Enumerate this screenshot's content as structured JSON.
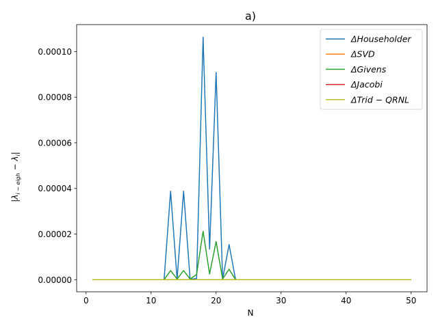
{
  "chart_data": {
    "type": "line",
    "title": "a)",
    "xlabel": "N",
    "ylabel": "|λ_{i-eigh} − λ_i|",
    "xlim": [
      -1.45,
      52.45
    ],
    "ylim": [
      -5.3e-06,
      0.0001118
    ],
    "x_ticks": [
      0,
      10,
      20,
      30,
      40,
      50
    ],
    "y_ticks": [
      0.0,
      2e-05,
      4e-05,
      6e-05,
      8e-05,
      0.0001
    ],
    "x_tick_labels": [
      "0",
      "10",
      "20",
      "30",
      "40",
      "50"
    ],
    "y_tick_labels": [
      "0.00000",
      "0.00002",
      "0.00004",
      "0.00006",
      "0.00008",
      "0.00010"
    ],
    "grid": false,
    "legend_position": "top-right",
    "x": [
      1,
      2,
      3,
      4,
      5,
      6,
      7,
      8,
      9,
      10,
      11,
      12,
      13,
      14,
      15,
      16,
      17,
      18,
      19,
      20,
      21,
      22,
      23,
      24,
      25,
      26,
      27,
      28,
      29,
      30,
      31,
      32,
      33,
      34,
      35,
      36,
      37,
      38,
      39,
      40,
      41,
      42,
      43,
      44,
      45,
      46,
      47,
      48,
      49,
      50
    ],
    "series": [
      {
        "name": "ΔHouseholder",
        "color": "#1f77b4",
        "values": [
          0,
          0,
          0,
          0,
          0,
          0,
          0,
          0,
          0,
          0,
          0,
          0,
          3.88e-05,
          2e-07,
          3.88e-05,
          2e-07,
          5e-07,
          0.0001063,
          1.34e-05,
          9.08e-05,
          3e-07,
          1.54e-05,
          0,
          0,
          0,
          0,
          0,
          0,
          0,
          0,
          0,
          0,
          0,
          0,
          0,
          0,
          0,
          0,
          0,
          0,
          0,
          0,
          0,
          0,
          0,
          0,
          0,
          0,
          0,
          0
        ]
      },
      {
        "name": "ΔSVD",
        "color": "#ff7f0e",
        "values": [
          0,
          0,
          0,
          0,
          0,
          0,
          0,
          0,
          0,
          0,
          0,
          0,
          0,
          0,
          0,
          0,
          0,
          0,
          0,
          0,
          0,
          0,
          0,
          0,
          0,
          0,
          0,
          0,
          0,
          0,
          0,
          0,
          0,
          0,
          0,
          0,
          0,
          0,
          0,
          0,
          0,
          0,
          0,
          0,
          0,
          0,
          0,
          0,
          0,
          0
        ]
      },
      {
        "name": "ΔGivens",
        "color": "#2ca02c",
        "values": [
          0,
          0,
          0,
          0,
          0,
          0,
          0,
          0,
          0,
          0,
          0,
          0,
          4e-06,
          3e-07,
          4e-06,
          3e-07,
          2.3e-06,
          2.12e-05,
          2.5e-06,
          1.67e-05,
          3e-07,
          4.6e-06,
          0,
          0,
          0,
          0,
          0,
          0,
          0,
          0,
          0,
          0,
          0,
          0,
          0,
          0,
          0,
          0,
          0,
          0,
          0,
          0,
          0,
          0,
          0,
          0,
          0,
          0,
          0,
          0
        ]
      },
      {
        "name": "ΔJacobi",
        "color": "#d62728",
        "values": [
          0,
          0,
          0,
          0,
          0,
          0,
          0,
          0,
          0,
          0,
          0,
          0,
          0,
          0,
          0,
          0,
          0,
          0,
          0,
          0,
          0,
          0,
          0,
          0,
          0,
          0,
          0,
          0,
          0,
          0,
          0,
          0,
          0,
          0,
          0,
          0,
          0,
          0,
          0,
          0,
          0,
          0,
          0,
          0,
          0,
          0,
          0,
          0,
          0,
          0
        ]
      },
      {
        "name": "ΔTrid − QRNL",
        "color": "#bcbd22",
        "values": [
          0,
          0,
          0,
          0,
          0,
          0,
          0,
          0,
          0,
          0,
          0,
          0,
          0,
          0,
          0,
          0,
          0,
          0,
          0,
          0,
          0,
          0,
          0,
          0,
          0,
          0,
          0,
          0,
          0,
          0,
          0,
          0,
          0,
          0,
          0,
          0,
          0,
          0,
          0,
          0,
          0,
          0,
          0,
          0,
          0,
          0,
          0,
          0,
          0,
          0
        ]
      }
    ]
  }
}
